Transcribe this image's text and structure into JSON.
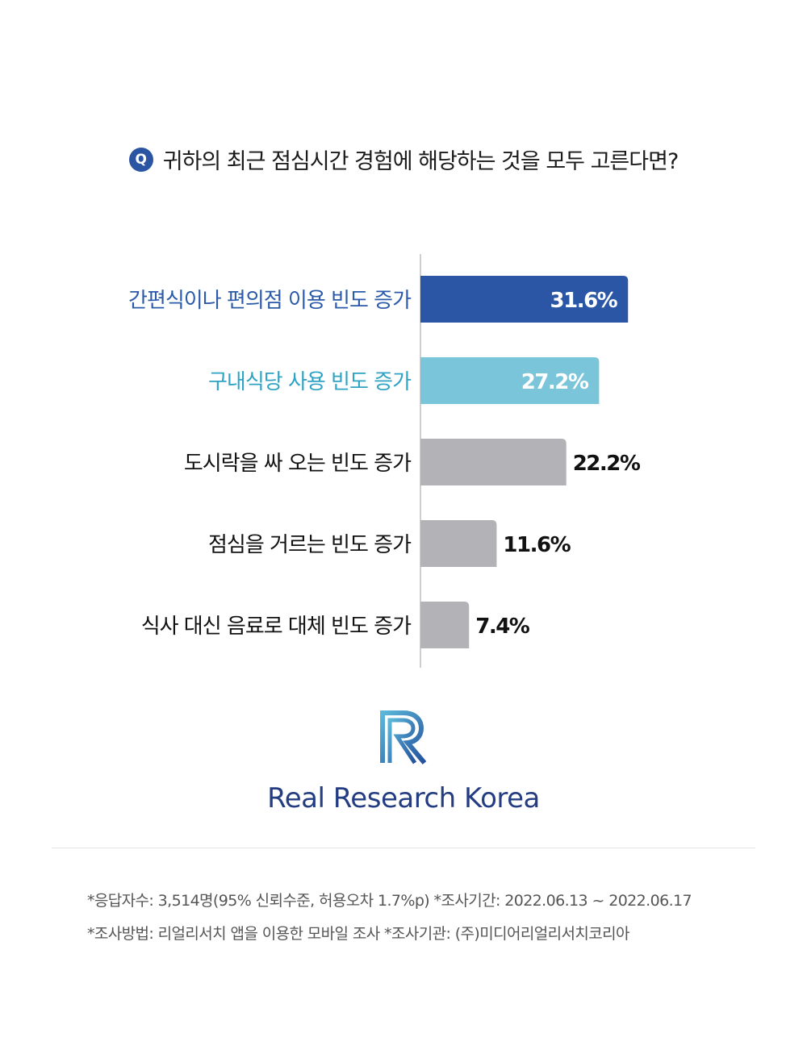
{
  "question": {
    "badge": "Q",
    "text": "귀하의 최근 점심시간 경험에 해당하는 것을 모두 고른다면?"
  },
  "chart_data": {
    "type": "bar",
    "orientation": "horizontal",
    "categories": [
      "간편식이나 편의점 이용 빈도 증가",
      "구내식당 사용 빈도 증가",
      "도시락을 싸 오는 빈도 증가",
      "점심을 거르는 빈도 증가",
      "식사 대신 음료로 대체 빈도 증가"
    ],
    "values": [
      31.6,
      27.2,
      22.2,
      11.6,
      7.4
    ],
    "value_labels": [
      "31.6%",
      "27.2%",
      "22.2%",
      "11.6%",
      "7.4%"
    ],
    "xlim": [
      0,
      100
    ],
    "grid": false,
    "colors": {
      "highlight_1": "#2b56a6",
      "highlight_2": "#7ac5da",
      "other": "#b3b3b7",
      "label_1": "#2b5aa8",
      "label_2": "#2fa3c4",
      "label_other": "#111111",
      "axis": "#bfbfbf"
    }
  },
  "brand": {
    "logo_icon": "rr-logo-icon",
    "name": "Real Research Korea",
    "color": "#243d82"
  },
  "footnotes": [
    "*응답자수: 3,514명(95% 신뢰수준, 허용오차 1.7%p)  *조사기간: 2022.06.13 ~ 2022.06.17",
    "*조사방법: 리얼리서치 앱을 이용한 모바일 조사  *조사기관: (주)미디어리얼리서치코리아"
  ]
}
